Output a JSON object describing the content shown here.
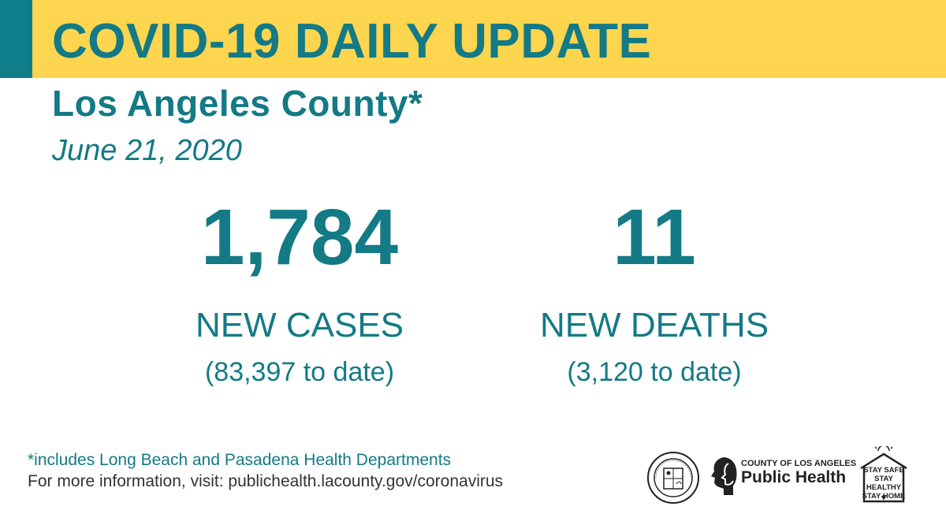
{
  "banner": {
    "title": "COVID-19 DAILY UPDATE",
    "color": "#fdd54e",
    "accent": "#0e7f8a"
  },
  "header": {
    "county": "Los Angeles County*",
    "date": "June 21, 2020"
  },
  "stats": {
    "cases": {
      "value": "1,784",
      "label": "NEW CASES",
      "to_date": "(83,397 to date)"
    },
    "deaths": {
      "value": "11",
      "label": "NEW DEATHS",
      "to_date": "(3,120 to date)"
    }
  },
  "footer": {
    "note": "*includes Long Beach and Pasadena Health Departments",
    "info": "For more information, visit: publichealth.lacounty.gov/coronavirus"
  },
  "logos": {
    "seal": {
      "icon": "county-seal-icon",
      "text": "COUNTY OF LOS ANGELES CALIFORNIA"
    },
    "public_health": {
      "small": "COUNTY OF LOS ANGELES",
      "big": "Public Health",
      "icon": "public-health-profile-icon"
    },
    "stay_safe": {
      "lines": [
        "STAY SAFE",
        "STAY HEALTHY",
        "STAY HOME"
      ],
      "icon": "house-sun-icon"
    }
  },
  "colors": {
    "teal": "#137a86",
    "text_dark": "#333333"
  }
}
